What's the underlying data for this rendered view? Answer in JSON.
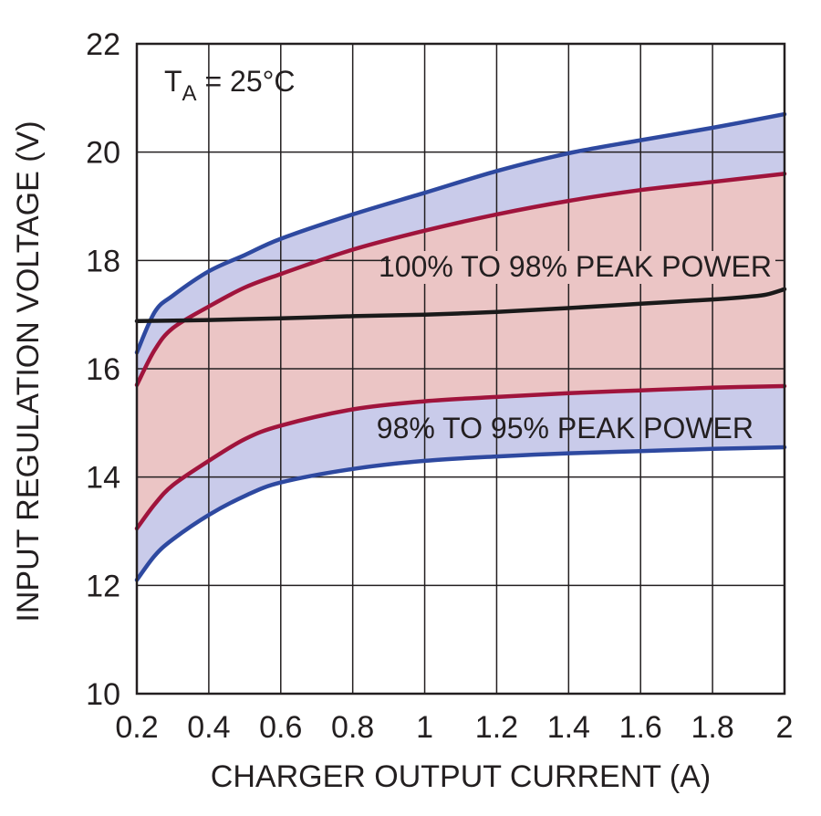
{
  "chart_data": {
    "type": "area",
    "title": "",
    "xlabel": "CHARGER OUTPUT CURRENT (A)",
    "ylabel": "INPUT REGULATION VOLTAGE (V)",
    "xlim": [
      0.2,
      2.0
    ],
    "ylim": [
      10,
      22
    ],
    "x_ticks": [
      "0.2",
      "0.4",
      "0.6",
      "0.8",
      "1",
      "1.2",
      "1.4",
      "1.6",
      "1.8",
      "2"
    ],
    "y_ticks": [
      "10",
      "12",
      "14",
      "16",
      "18",
      "20",
      "22"
    ],
    "grid": true,
    "annotations": {
      "temperature_main": "T",
      "temperature_sub": "A",
      "temperature_rest": " = 25°C",
      "band_inner": "100% TO 98% PEAK POWER",
      "band_outer": "98% TO 95% PEAK POWER"
    },
    "colors": {
      "outer_band_fill": "#c9cbea",
      "inner_band_fill": "#ebc5c5",
      "outer_line": "#2e49a0",
      "inner_line": "#a0143c",
      "main_line": "#1a1a1a"
    },
    "series": [
      {
        "role": "upper-95",
        "x": [
          0.2,
          0.25,
          0.3,
          0.4,
          0.5,
          0.6,
          0.8,
          1.0,
          1.2,
          1.4,
          1.6,
          1.8,
          2.0
        ],
        "y": [
          16.3,
          17.05,
          17.35,
          17.8,
          18.1,
          18.4,
          18.85,
          19.25,
          19.65,
          19.98,
          20.22,
          20.45,
          20.7
        ]
      },
      {
        "role": "upper-98",
        "x": [
          0.2,
          0.25,
          0.3,
          0.4,
          0.5,
          0.6,
          0.8,
          1.0,
          1.2,
          1.4,
          1.6,
          1.8,
          2.0
        ],
        "y": [
          15.7,
          16.35,
          16.75,
          17.15,
          17.5,
          17.75,
          18.2,
          18.55,
          18.85,
          19.1,
          19.3,
          19.45,
          19.6
        ]
      },
      {
        "role": "peak",
        "x": [
          0.2,
          0.4,
          0.6,
          0.8,
          1.0,
          1.2,
          1.4,
          1.6,
          1.8,
          1.9,
          1.95,
          2.0
        ],
        "y": [
          16.88,
          16.9,
          16.93,
          16.97,
          17.0,
          17.05,
          17.12,
          17.2,
          17.28,
          17.33,
          17.37,
          17.47
        ]
      },
      {
        "role": "lower-98",
        "x": [
          0.2,
          0.25,
          0.3,
          0.4,
          0.5,
          0.6,
          0.8,
          1.0,
          1.2,
          1.4,
          1.6,
          1.8,
          2.0
        ],
        "y": [
          13.05,
          13.5,
          13.85,
          14.3,
          14.7,
          14.95,
          15.25,
          15.4,
          15.48,
          15.55,
          15.6,
          15.65,
          15.68
        ]
      },
      {
        "role": "lower-95",
        "x": [
          0.2,
          0.25,
          0.3,
          0.4,
          0.5,
          0.6,
          0.8,
          1.0,
          1.2,
          1.4,
          1.6,
          1.8,
          2.0
        ],
        "y": [
          12.1,
          12.55,
          12.85,
          13.3,
          13.65,
          13.9,
          14.15,
          14.3,
          14.38,
          14.44,
          14.48,
          14.52,
          14.55
        ]
      }
    ]
  }
}
